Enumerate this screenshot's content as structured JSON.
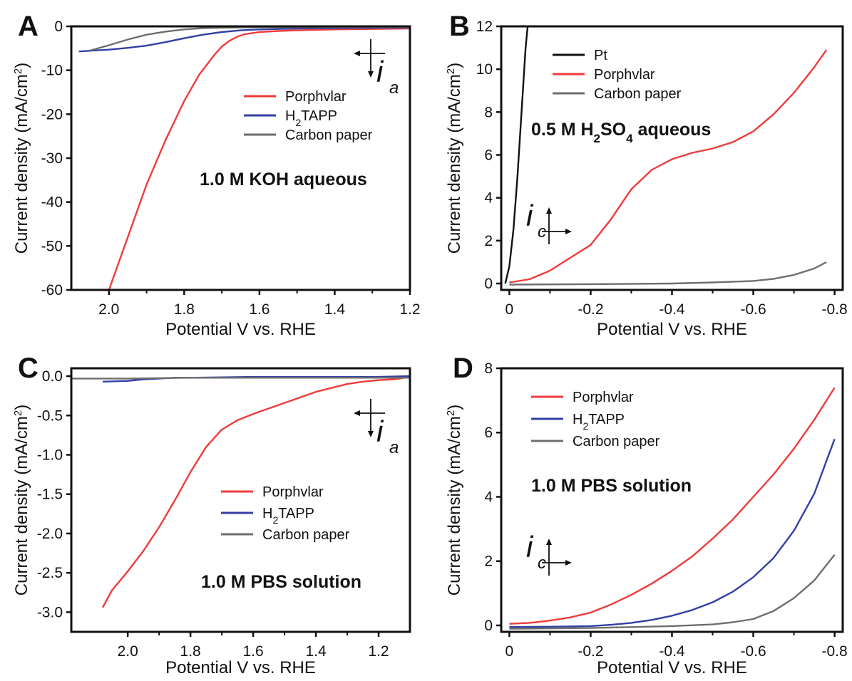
{
  "figure": {
    "panels": [
      "A",
      "B",
      "C",
      "D"
    ]
  },
  "colors": {
    "porphvlar": "#ef3b3b",
    "h2tapp": "#3340a6",
    "carbon_paper": "#6e6e6e",
    "pt": "#111111"
  },
  "chart_data": [
    {
      "panel": "A",
      "type": "line",
      "xlabel": "Potential V vs. RHE",
      "ylabel": "Current density (mA/cm²)",
      "xlim": [
        2.1,
        1.2
      ],
      "ylim": [
        -60,
        0
      ],
      "xticks": [
        2.0,
        1.8,
        1.6,
        1.4,
        1.2
      ],
      "xtick_labels": [
        "2.0",
        "1.8",
        "1.6",
        "1.4",
        "1.2"
      ],
      "yticks": [
        0,
        -10,
        -20,
        -30,
        -40,
        -50,
        -60
      ],
      "ytick_labels": [
        "0",
        "-10",
        "-20",
        "-30",
        "-40",
        "-50",
        "-60"
      ],
      "annotation": "1.0 M KOH aqueous",
      "arrow": {
        "symbol": "i",
        "subscript": "a"
      },
      "legend_location": "right",
      "series": [
        {
          "name": "Porphvlar",
          "key": "porphvlar",
          "x": [
            2.0,
            1.95,
            1.9,
            1.85,
            1.8,
            1.76,
            1.72,
            1.7,
            1.68,
            1.66,
            1.64,
            1.6,
            1.55,
            1.5,
            1.4,
            1.3,
            1.2
          ],
          "y": [
            -60,
            -48,
            -36,
            -26,
            -17,
            -11,
            -6.5,
            -4.6,
            -3.3,
            -2.4,
            -1.8,
            -1.3,
            -1.05,
            -0.9,
            -0.7,
            -0.6,
            -0.5
          ]
        },
        {
          "name": "H₂TAPP",
          "key": "h2tapp",
          "x": [
            2.08,
            2.0,
            1.95,
            1.9,
            1.85,
            1.8,
            1.75,
            1.7,
            1.65,
            1.6,
            1.5,
            1.4,
            1.3,
            1.2
          ],
          "y": [
            -5.7,
            -5.3,
            -4.9,
            -4.4,
            -3.6,
            -2.7,
            -1.9,
            -1.3,
            -0.9,
            -0.7,
            -0.5,
            -0.4,
            -0.35,
            -0.3
          ]
        },
        {
          "name": "Carbon paper",
          "key": "carbon_paper",
          "x": [
            2.05,
            2.0,
            1.95,
            1.9,
            1.85,
            1.8,
            1.75,
            1.7,
            1.6,
            1.5,
            1.4,
            1.3,
            1.2
          ],
          "y": [
            -5.5,
            -4.3,
            -3.0,
            -1.9,
            -1.2,
            -0.7,
            -0.4,
            -0.3,
            -0.2,
            -0.2,
            -0.2,
            -0.2,
            -0.2
          ]
        }
      ]
    },
    {
      "panel": "B",
      "type": "line",
      "xlabel": "Potential V vs. RHE",
      "ylabel": "Current density (mA/cm²)",
      "xlim": [
        0.02,
        -0.82
      ],
      "ylim": [
        -0.3,
        12
      ],
      "xticks": [
        0,
        -0.2,
        -0.4,
        -0.6,
        -0.8
      ],
      "xtick_labels": [
        "0",
        "-0.2",
        "-0.4",
        "-0.6",
        "-0.8"
      ],
      "yticks": [
        0,
        2,
        4,
        6,
        8,
        10,
        12
      ],
      "ytick_labels": [
        "0",
        "2",
        "4",
        "6",
        "8",
        "10",
        "12"
      ],
      "annotation": "0.5 M H₂SO₄ aqueous",
      "arrow": {
        "symbol": "i",
        "subscript": "c"
      },
      "legend_location": "top-left",
      "series": [
        {
          "name": "Pt",
          "key": "pt",
          "x": [
            0.01,
            0.0,
            -0.01,
            -0.02,
            -0.03,
            -0.04,
            -0.045
          ],
          "y": [
            0.0,
            0.8,
            2.5,
            5.0,
            8.0,
            11.0,
            12.0
          ]
        },
        {
          "name": "Porphvlar",
          "key": "porphvlar",
          "x": [
            0.0,
            -0.05,
            -0.1,
            -0.15,
            -0.2,
            -0.25,
            -0.3,
            -0.35,
            -0.4,
            -0.45,
            -0.5,
            -0.55,
            -0.6,
            -0.65,
            -0.7,
            -0.75,
            -0.78
          ],
          "y": [
            0.05,
            0.2,
            0.6,
            1.2,
            1.8,
            3.0,
            4.4,
            5.3,
            5.8,
            6.1,
            6.3,
            6.6,
            7.1,
            7.9,
            8.9,
            10.1,
            10.9
          ]
        },
        {
          "name": "Carbon paper",
          "key": "carbon_paper",
          "x": [
            0.0,
            -0.2,
            -0.4,
            -0.5,
            -0.6,
            -0.65,
            -0.7,
            -0.75,
            -0.78
          ],
          "y": [
            -0.05,
            -0.03,
            0.0,
            0.05,
            0.12,
            0.22,
            0.4,
            0.7,
            1.0
          ]
        }
      ]
    },
    {
      "panel": "C",
      "type": "line",
      "xlabel": "Potential V vs. RHE",
      "ylabel": "Current density (mA/cm²)",
      "xlim": [
        2.18,
        1.1
      ],
      "ylim": [
        -3.25,
        0.1
      ],
      "xticks": [
        2.0,
        1.8,
        1.6,
        1.4,
        1.2
      ],
      "xtick_labels": [
        "2.0",
        "1.8",
        "1.6",
        "1.4",
        "1.2"
      ],
      "yticks": [
        0.0,
        -0.5,
        -1.0,
        -1.5,
        -2.0,
        -2.5,
        -3.0
      ],
      "ytick_labels": [
        "0.0",
        "-0.5",
        "-1.0",
        "-1.5",
        "-2.0",
        "-2.5",
        "-3.0"
      ],
      "annotation": "1.0 M PBS solution",
      "arrow": {
        "symbol": "i",
        "subscript": "a"
      },
      "legend_location": "bottom-right",
      "series": [
        {
          "name": "Porphvlar",
          "key": "porphvlar",
          "x": [
            2.08,
            2.05,
            2.0,
            1.95,
            1.9,
            1.85,
            1.8,
            1.75,
            1.7,
            1.65,
            1.6,
            1.5,
            1.4,
            1.3,
            1.25,
            1.2,
            1.15,
            1.1
          ],
          "y": [
            -2.94,
            -2.72,
            -2.48,
            -2.22,
            -1.92,
            -1.58,
            -1.22,
            -0.9,
            -0.68,
            -0.56,
            -0.48,
            -0.34,
            -0.2,
            -0.1,
            -0.07,
            -0.05,
            -0.04,
            -0.01
          ]
        },
        {
          "name": "H₂TAPP",
          "key": "h2tapp",
          "x": [
            2.08,
            2.0,
            1.95,
            1.9,
            1.85,
            1.8,
            1.6,
            1.4,
            1.2,
            1.1
          ],
          "y": [
            -0.07,
            -0.06,
            -0.04,
            -0.03,
            -0.02,
            -0.02,
            -0.01,
            -0.01,
            -0.01,
            0.0
          ]
        },
        {
          "name": "Carbon paper",
          "key": "carbon_paper",
          "x": [
            2.18,
            2.0,
            1.8,
            1.6,
            1.4,
            1.2,
            1.1
          ],
          "y": [
            -0.03,
            -0.03,
            -0.02,
            -0.02,
            -0.02,
            -0.02,
            -0.02
          ]
        }
      ]
    },
    {
      "panel": "D",
      "type": "line",
      "xlabel": "Potential V vs. RHE",
      "ylabel": "Current density (mA/cm²)",
      "xlim": [
        0.02,
        -0.82
      ],
      "ylim": [
        -0.2,
        8
      ],
      "xticks": [
        0,
        -0.2,
        -0.4,
        -0.6,
        -0.8
      ],
      "xtick_labels": [
        "0",
        "-0.2",
        "-0.4",
        "-0.6",
        "-0.8"
      ],
      "yticks": [
        0,
        2,
        4,
        6,
        8
      ],
      "ytick_labels": [
        "0",
        "2",
        "4",
        "6",
        "8"
      ],
      "annotation": "1.0 M PBS solution",
      "arrow": {
        "symbol": "i",
        "subscript": "c"
      },
      "legend_location": "top-left",
      "series": [
        {
          "name": "Porphvlar",
          "key": "porphvlar",
          "x": [
            0.0,
            -0.05,
            -0.1,
            -0.15,
            -0.2,
            -0.25,
            -0.3,
            -0.35,
            -0.4,
            -0.45,
            -0.5,
            -0.55,
            -0.6,
            -0.65,
            -0.7,
            -0.75,
            -0.8
          ],
          "y": [
            0.05,
            0.08,
            0.15,
            0.25,
            0.4,
            0.65,
            0.95,
            1.3,
            1.7,
            2.15,
            2.7,
            3.3,
            4.0,
            4.7,
            5.5,
            6.4,
            7.4
          ]
        },
        {
          "name": "H₂TAPP",
          "key": "h2tapp",
          "x": [
            0.0,
            -0.1,
            -0.2,
            -0.25,
            -0.3,
            -0.35,
            -0.4,
            -0.45,
            -0.5,
            -0.55,
            -0.6,
            -0.65,
            -0.7,
            -0.75,
            -0.8
          ],
          "y": [
            -0.05,
            -0.04,
            -0.02,
            0.02,
            0.08,
            0.17,
            0.3,
            0.48,
            0.72,
            1.05,
            1.5,
            2.1,
            2.95,
            4.1,
            5.8
          ]
        },
        {
          "name": "Carbon paper",
          "key": "carbon_paper",
          "x": [
            0.0,
            -0.2,
            -0.4,
            -0.5,
            -0.55,
            -0.6,
            -0.65,
            -0.7,
            -0.75,
            -0.8
          ],
          "y": [
            -0.1,
            -0.08,
            -0.02,
            0.03,
            0.1,
            0.2,
            0.45,
            0.85,
            1.4,
            2.2
          ]
        }
      ]
    }
  ]
}
